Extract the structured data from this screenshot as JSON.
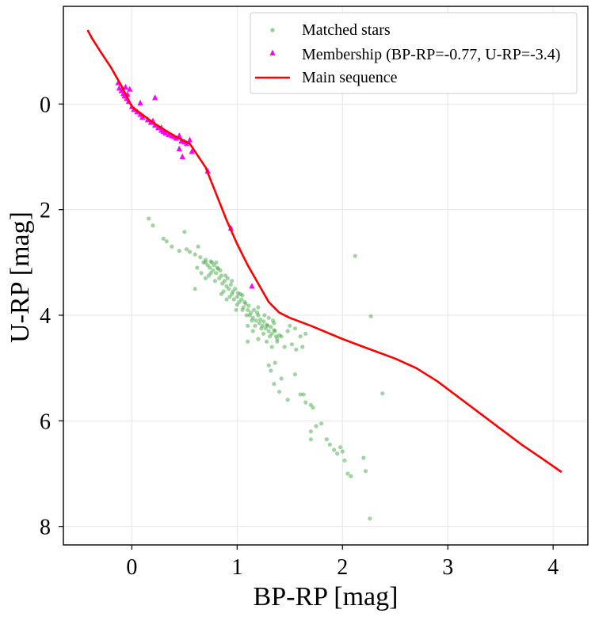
{
  "chart_data": {
    "type": "scatter",
    "title": "",
    "xlabel": "BP-RP [mag]",
    "ylabel": "U-RP [mag]",
    "xlim": [
      -0.65,
      4.33
    ],
    "ylim": [
      8.35,
      -1.85
    ],
    "y_inverted": true,
    "grid": true,
    "legend_position": "top-right",
    "x_ticks": [
      "0",
      "1",
      "2",
      "3",
      "4"
    ],
    "y_ticks": [
      "0",
      "2",
      "4",
      "6",
      "8"
    ],
    "series": [
      {
        "name": "Matched stars",
        "style": "points",
        "color": "#2ca02c",
        "points": [
          [
            0.16,
            2.17
          ],
          [
            0.2,
            2.3
          ],
          [
            0.3,
            2.55
          ],
          [
            0.33,
            2.6
          ],
          [
            0.38,
            2.7
          ],
          [
            0.45,
            2.78
          ],
          [
            0.5,
            2.42
          ],
          [
            0.52,
            2.75
          ],
          [
            0.55,
            2.8
          ],
          [
            0.6,
            2.85
          ],
          [
            0.63,
            2.7
          ],
          [
            0.65,
            2.9
          ],
          [
            0.68,
            3.0
          ],
          [
            0.7,
            2.95
          ],
          [
            0.72,
            3.05
          ],
          [
            0.74,
            3.1
          ],
          [
            0.75,
            2.98
          ],
          [
            0.77,
            3.15
          ],
          [
            0.78,
            3.05
          ],
          [
            0.8,
            3.2
          ],
          [
            0.82,
            3.12
          ],
          [
            0.83,
            3.3
          ],
          [
            0.85,
            3.25
          ],
          [
            0.86,
            3.4
          ],
          [
            0.88,
            3.35
          ],
          [
            0.9,
            3.45
          ],
          [
            0.91,
            3.3
          ],
          [
            0.92,
            3.5
          ],
          [
            0.94,
            3.42
          ],
          [
            0.95,
            3.6
          ],
          [
            0.96,
            3.55
          ],
          [
            0.98,
            3.5
          ],
          [
            1.0,
            3.65
          ],
          [
            1.01,
            3.58
          ],
          [
            1.02,
            3.75
          ],
          [
            1.04,
            3.7
          ],
          [
            1.05,
            3.62
          ],
          [
            1.06,
            3.85
          ],
          [
            1.08,
            3.78
          ],
          [
            1.1,
            3.9
          ],
          [
            1.11,
            3.82
          ],
          [
            1.12,
            4.0
          ],
          [
            1.13,
            3.95
          ],
          [
            1.15,
            4.05
          ],
          [
            1.16,
            3.9
          ],
          [
            1.18,
            4.1
          ],
          [
            1.2,
            4.0
          ],
          [
            1.21,
            4.15
          ],
          [
            1.22,
            4.08
          ],
          [
            1.24,
            4.2
          ],
          [
            1.25,
            4.12
          ],
          [
            1.27,
            4.25
          ],
          [
            1.28,
            4.18
          ],
          [
            1.3,
            4.3
          ],
          [
            1.32,
            4.22
          ],
          [
            1.33,
            4.35
          ],
          [
            1.35,
            4.28
          ],
          [
            1.37,
            4.4
          ],
          [
            1.38,
            4.45
          ],
          [
            1.4,
            4.38
          ],
          [
            0.7,
            3.3
          ],
          [
            0.75,
            3.2
          ],
          [
            0.8,
            3.0
          ],
          [
            0.85,
            3.6
          ],
          [
            0.9,
            3.7
          ],
          [
            0.95,
            3.35
          ],
          [
            1.0,
            3.8
          ],
          [
            1.05,
            3.9
          ],
          [
            1.1,
            4.2
          ],
          [
            1.15,
            4.3
          ],
          [
            1.2,
            3.85
          ],
          [
            1.25,
            4.35
          ],
          [
            1.3,
            4.05
          ],
          [
            1.35,
            4.15
          ],
          [
            1.1,
            4.5
          ],
          [
            1.2,
            4.45
          ],
          [
            1.28,
            4.5
          ],
          [
            1.33,
            4.6
          ],
          [
            1.38,
            4.5
          ],
          [
            1.42,
            4.4
          ],
          [
            1.45,
            4.6
          ],
          [
            1.48,
            4.3
          ],
          [
            1.5,
            4.2
          ],
          [
            1.55,
            4.25
          ],
          [
            1.6,
            4.4
          ],
          [
            1.62,
            4.6
          ],
          [
            1.65,
            4.35
          ],
          [
            1.52,
            4.55
          ],
          [
            1.56,
            4.65
          ],
          [
            1.3,
            4.95
          ],
          [
            1.32,
            5.05
          ],
          [
            1.36,
            4.9
          ],
          [
            1.35,
            5.3
          ],
          [
            1.42,
            5.2
          ],
          [
            1.48,
            5.6
          ],
          [
            1.55,
            5.12
          ],
          [
            1.6,
            5.5
          ],
          [
            1.63,
            5.5
          ],
          [
            1.65,
            5.65
          ],
          [
            1.7,
            5.7
          ],
          [
            1.72,
            5.75
          ],
          [
            1.75,
            6.1
          ],
          [
            1.8,
            6.05
          ],
          [
            1.85,
            6.35
          ],
          [
            1.88,
            6.45
          ],
          [
            1.92,
            6.55
          ],
          [
            1.95,
            6.62
          ],
          [
            1.98,
            6.5
          ],
          [
            2.0,
            6.58
          ],
          [
            2.02,
            6.75
          ],
          [
            2.05,
            7.0
          ],
          [
            2.08,
            7.05
          ],
          [
            2.2,
            6.7
          ],
          [
            2.22,
            6.95
          ],
          [
            2.26,
            7.85
          ],
          [
            2.12,
            2.88
          ],
          [
            2.27,
            4.02
          ],
          [
            2.38,
            5.48
          ],
          [
            1.7,
            6.2
          ],
          [
            1.7,
            6.35
          ],
          [
            1.4,
            5.45
          ],
          [
            0.6,
            3.5
          ],
          [
            0.62,
            3.1
          ],
          [
            0.66,
            3.2
          ],
          [
            0.7,
            3.0
          ],
          [
            0.73,
            3.25
          ],
          [
            0.76,
            3.0
          ],
          [
            0.79,
            3.35
          ],
          [
            0.81,
            3.1
          ],
          [
            0.84,
            3.15
          ],
          [
            0.87,
            3.55
          ],
          [
            0.89,
            3.25
          ],
          [
            0.93,
            3.65
          ],
          [
            0.97,
            3.7
          ],
          [
            0.99,
            3.9
          ],
          [
            1.03,
            3.6
          ],
          [
            1.07,
            3.75
          ],
          [
            1.09,
            4.0
          ],
          [
            1.14,
            4.1
          ],
          [
            1.17,
            4.2
          ],
          [
            1.19,
            3.95
          ],
          [
            1.23,
            4.25
          ],
          [
            1.26,
            4.0
          ],
          [
            1.29,
            4.2
          ],
          [
            1.31,
            4.4
          ],
          [
            1.34,
            4.1
          ],
          [
            1.36,
            4.3
          ]
        ]
      },
      {
        "name": "Membership (BP-RP=-0.77, U-RP=-3.4)",
        "style": "triangles",
        "color": "#ff00ff",
        "points": [
          [
            -0.13,
            -0.4
          ],
          [
            -0.12,
            -0.3
          ],
          [
            -0.1,
            -0.25
          ],
          [
            -0.08,
            -0.2
          ],
          [
            -0.07,
            -0.15
          ],
          [
            -0.05,
            -0.1
          ],
          [
            -0.03,
            -0.05
          ],
          [
            0.0,
            0.05
          ],
          [
            0.02,
            0.1
          ],
          [
            0.05,
            0.15
          ],
          [
            0.08,
            0.2
          ],
          [
            0.1,
            0.25
          ],
          [
            0.15,
            0.3
          ],
          [
            0.18,
            0.35
          ],
          [
            0.2,
            0.32
          ],
          [
            0.22,
            0.4
          ],
          [
            0.25,
            0.45
          ],
          [
            0.28,
            0.5
          ],
          [
            0.3,
            0.52
          ],
          [
            0.32,
            0.55
          ],
          [
            0.35,
            0.58
          ],
          [
            0.38,
            0.6
          ],
          [
            0.4,
            0.62
          ],
          [
            0.42,
            0.65
          ],
          [
            0.45,
            0.6
          ],
          [
            0.47,
            0.7
          ],
          [
            0.5,
            0.72
          ],
          [
            0.52,
            0.75
          ],
          [
            0.55,
            0.68
          ],
          [
            0.57,
            0.9
          ],
          [
            0.48,
            1.0
          ],
          [
            0.45,
            0.85
          ],
          [
            0.28,
            0.45
          ],
          [
            0.22,
            -0.12
          ],
          [
            0.08,
            -0.02
          ],
          [
            -0.02,
            -0.28
          ],
          [
            -0.04,
            -0.18
          ],
          [
            -0.06,
            -0.32
          ],
          [
            0.72,
            1.27
          ],
          [
            0.94,
            2.35
          ],
          [
            1.14,
            3.45
          ]
        ]
      },
      {
        "name": "Main sequence",
        "style": "line",
        "color": "#ff0000",
        "points": [
          [
            -0.42,
            -1.4
          ],
          [
            -0.38,
            -1.25
          ],
          [
            -0.3,
            -1.0
          ],
          [
            -0.2,
            -0.7
          ],
          [
            -0.1,
            -0.35
          ],
          [
            0.0,
            0.05
          ],
          [
            0.2,
            0.35
          ],
          [
            0.4,
            0.6
          ],
          [
            0.55,
            0.75
          ],
          [
            0.7,
            1.2
          ],
          [
            0.8,
            1.7
          ],
          [
            0.9,
            2.2
          ],
          [
            1.0,
            2.65
          ],
          [
            1.1,
            3.05
          ],
          [
            1.2,
            3.4
          ],
          [
            1.3,
            3.75
          ],
          [
            1.4,
            3.95
          ],
          [
            1.5,
            4.05
          ],
          [
            1.7,
            4.2
          ],
          [
            2.0,
            4.45
          ],
          [
            2.2,
            4.6
          ],
          [
            2.5,
            4.82
          ],
          [
            2.7,
            5.0
          ],
          [
            2.9,
            5.25
          ],
          [
            3.1,
            5.55
          ],
          [
            3.3,
            5.85
          ],
          [
            3.5,
            6.15
          ],
          [
            3.7,
            6.45
          ],
          [
            3.9,
            6.72
          ],
          [
            4.08,
            6.97
          ]
        ]
      }
    ]
  }
}
